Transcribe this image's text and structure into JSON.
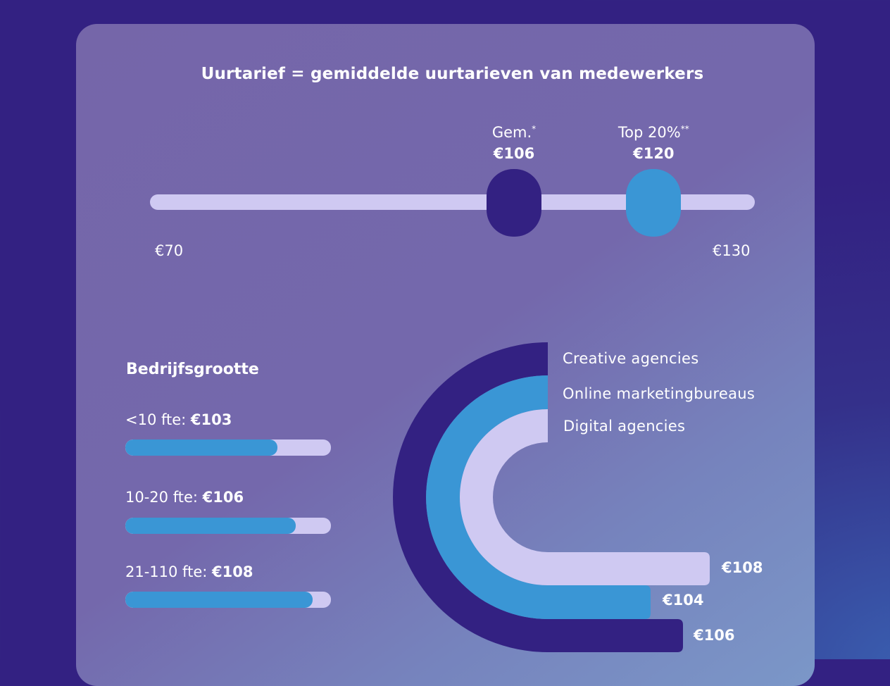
{
  "title": "Uurtarief = gemiddelde uurtarieven van medewerkers",
  "range": {
    "min": 70,
    "max": 130,
    "min_label": "€70",
    "max_label": "€130",
    "markers": [
      {
        "name": "Gem.",
        "sup": "*",
        "value": 106,
        "value_label": "€106",
        "color": "#332182"
      },
      {
        "name": "Top 20%",
        "sup": "**",
        "value": 120,
        "value_label": "€120",
        "color": "#3a96d5"
      }
    ]
  },
  "company_size": {
    "title": "Bedrijfsgrootte",
    "items": [
      {
        "label": "<10 fte: ",
        "value_label": "€103",
        "value": 103,
        "fill": 0.74
      },
      {
        "label": "10-20 fte: ",
        "value_label": "€106",
        "value": 106,
        "fill": 0.83
      },
      {
        "label": "21-110 fte: ",
        "value_label": "€108",
        "value": 108,
        "fill": 0.91
      }
    ]
  },
  "chart_data": [
    {
      "type": "line",
      "title": "Uurtarief = gemiddelde uurtarieven van medewerkers",
      "xlim": [
        70,
        130
      ],
      "x_tick_labels": [
        "€70",
        "€130"
      ],
      "markers": [
        {
          "label": "Gem.*",
          "value": 106
        },
        {
          "label": "Top 20%**",
          "value": 120
        }
      ]
    },
    {
      "type": "bar",
      "title": "Bedrijfsgrootte",
      "categories": [
        "<10 fte",
        "10-20 fte",
        "21-110 fte"
      ],
      "values": [
        103,
        106,
        108
      ]
    },
    {
      "type": "bar",
      "categories": [
        "Creative agencies",
        "Online marketingbureaus",
        "Digital agencies"
      ],
      "values": [
        106,
        104,
        108
      ],
      "value_labels": [
        "€106",
        "€104",
        "€108"
      ],
      "colors": [
        "#332182",
        "#3a96d5",
        "#cfc9f2"
      ]
    }
  ],
  "agency_types": [
    {
      "name": "Creative agencies",
      "value_label": "€106",
      "color": "#332182"
    },
    {
      "name": "Online marketingbureaus",
      "value_label": "€104",
      "color": "#3a96d5"
    },
    {
      "name": "Digital agencies",
      "value_label": "€108",
      "color": "#cfc9f2"
    }
  ]
}
